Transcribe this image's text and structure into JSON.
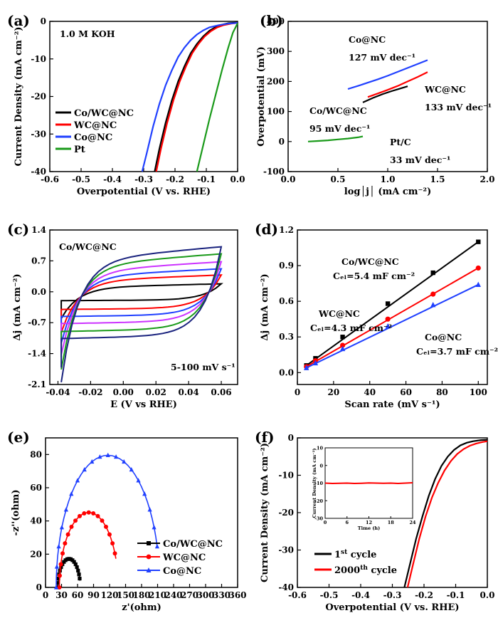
{
  "chart_data": [
    {
      "panel": "(a)",
      "type": "line",
      "xlabel": "Overpotential (V vs. RHE)",
      "ylabel": "Current Density (mA cm⁻²)",
      "xlim": [
        -0.6,
        0.0
      ],
      "ylim": [
        -40,
        0
      ],
      "xticks": [
        "-0.6",
        "-0.5",
        "-0.4",
        "-0.3",
        "-0.2",
        "-0.1",
        "0.0"
      ],
      "yticks": [
        "0",
        "-10",
        "-20",
        "-30",
        "-40"
      ],
      "annotation": "1.0 M KOH",
      "legend_position": "lower-left",
      "series": [
        {
          "name": "Co/WC@NC",
          "color": "#000000",
          "x": [
            -0.265,
            -0.25,
            -0.23,
            -0.21,
            -0.19,
            -0.17,
            -0.15,
            -0.13,
            -0.11,
            -0.09,
            -0.07,
            -0.05,
            -0.03,
            0.0
          ],
          "y": [
            -40,
            -34,
            -27,
            -21,
            -16,
            -12,
            -8.5,
            -6,
            -4,
            -2.5,
            -1.5,
            -0.9,
            -0.5,
            -0.3
          ]
        },
        {
          "name": "WC@NC",
          "color": "#ff0000",
          "x": [
            -0.26,
            -0.245,
            -0.225,
            -0.205,
            -0.185,
            -0.165,
            -0.145,
            -0.125,
            -0.105,
            -0.085,
            -0.065,
            -0.045,
            -0.02,
            0.0
          ],
          "y": [
            -40,
            -34,
            -27,
            -21,
            -16,
            -12,
            -8.5,
            -6,
            -4,
            -2.6,
            -1.6,
            -1.0,
            -0.6,
            -0.4
          ]
        },
        {
          "name": "Co@NC",
          "color": "#2040ff",
          "x": [
            -0.305,
            -0.29,
            -0.27,
            -0.25,
            -0.23,
            -0.21,
            -0.19,
            -0.17,
            -0.15,
            -0.13,
            -0.11,
            -0.09,
            -0.06,
            -0.03,
            0.0
          ],
          "y": [
            -40,
            -35,
            -28,
            -22,
            -17,
            -13,
            -9.5,
            -7,
            -5,
            -3.5,
            -2.4,
            -1.6,
            -1.0,
            -0.6,
            -0.4
          ]
        },
        {
          "name": "Pt",
          "color": "#1a9a1a",
          "x": [
            -0.13,
            -0.11,
            -0.09,
            -0.07,
            -0.05,
            -0.03,
            -0.015,
            0.0
          ],
          "y": [
            -40,
            -33,
            -26,
            -19.5,
            -13,
            -7,
            -3,
            -0.5
          ]
        }
      ]
    },
    {
      "panel": "(b)",
      "type": "line",
      "xlabel": "log│j│ (mA cm⁻²)",
      "ylabel": "Overpotential (mV)",
      "xlim": [
        0.0,
        2.0
      ],
      "ylim": [
        -100,
        400
      ],
      "xticks": [
        "0.0",
        "0.5",
        "1.0",
        "1.5",
        "2.0"
      ],
      "yticks": [
        "400",
        "300",
        "200",
        "100",
        "0",
        "-100"
      ],
      "series": [
        {
          "name": "Co/WC@NC",
          "color": "#000000",
          "label_lines": [
            "Co/WC@NC",
            "95 mV dec⁻¹"
          ],
          "x": [
            0.75,
            0.85,
            0.95,
            1.05,
            1.15,
            1.2
          ],
          "y": [
            130,
            145,
            158,
            169,
            179,
            184
          ]
        },
        {
          "name": "WC@NC",
          "color": "#ff0000",
          "label_lines": [
            "WC@NC",
            "133 mV dec⁻¹"
          ],
          "x": [
            0.8,
            0.9,
            1.0,
            1.1,
            1.2,
            1.3,
            1.4
          ],
          "y": [
            148,
            160,
            172,
            185,
            200,
            215,
            231
          ]
        },
        {
          "name": "Co@NC",
          "color": "#2040ff",
          "label_lines": [
            "Co@NC",
            "127 mV dec⁻¹"
          ],
          "x": [
            0.6,
            0.7,
            0.8,
            0.9,
            1.0,
            1.1,
            1.2,
            1.3,
            1.4
          ],
          "y": [
            175,
            185,
            196,
            207,
            219,
            232,
            245,
            258,
            271
          ]
        },
        {
          "name": "Pt/C",
          "color": "#1a9a1a",
          "label_lines": [
            "Pt/C",
            "33 mV dec⁻¹"
          ],
          "x": [
            0.2,
            0.3,
            0.4,
            0.5,
            0.6,
            0.7,
            0.75
          ],
          "y": [
            0,
            2,
            4,
            7,
            10,
            14,
            17
          ]
        }
      ]
    },
    {
      "panel": "(c)",
      "type": "line",
      "xlabel": "E (V vs RHE)",
      "ylabel": "Δj (mA cm⁻²)",
      "xlim": [
        -0.045,
        0.07
      ],
      "ylim": [
        -2.1,
        1.4
      ],
      "xticks": [
        "-0.04",
        "-0.02",
        "0.00",
        "0.02",
        "0.04",
        "0.06"
      ],
      "yticks": [
        "1.4",
        "0.7",
        "0.0",
        "-0.7",
        "-1.4",
        "-2.1"
      ],
      "annotation_top": "Co/WC@NC",
      "annotation_bottom": "5-100 mV s⁻¹",
      "cv_loops": [
        {
          "rate": 5,
          "color": "#000000",
          "upper": 0.18,
          "lower": -0.2,
          "start": -0.52
        },
        {
          "rate": 10,
          "color": "#ff0000",
          "upper": 0.38,
          "lower": -0.4,
          "start": -0.78
        },
        {
          "rate": 25,
          "color": "#2040ff",
          "upper": 0.52,
          "lower": -0.56,
          "start": -0.98
        },
        {
          "rate": 50,
          "color": "#cc33ff",
          "upper": 0.68,
          "lower": -0.72,
          "start": -1.2
        },
        {
          "rate": 75,
          "color": "#1a9a1a",
          "upper": 0.86,
          "lower": -0.9,
          "start": -1.48
        },
        {
          "rate": 100,
          "color": "#1a237e",
          "upper": 1.02,
          "lower": -1.06,
          "start": -1.72
        }
      ]
    },
    {
      "panel": "(d)",
      "type": "scatter",
      "xlabel": "Scan rate (mV s⁻¹)",
      "ylabel": "Δj (mA cm⁻²)",
      "xlim": [
        0,
        105
      ],
      "ylim": [
        -0.1,
        1.2
      ],
      "xticks": [
        "0",
        "20",
        "40",
        "60",
        "80",
        "100"
      ],
      "yticks": [
        "1.2",
        "0.9",
        "0.6",
        "0.3",
        "0.0"
      ],
      "series": [
        {
          "name": "Co/WC@NC",
          "color": "#000000",
          "marker": "square",
          "label_lines": [
            "Co/WC@NC",
            "Cₑₗ=5.4 mF cm⁻²"
          ],
          "x": [
            5,
            10,
            25,
            50,
            75,
            100
          ],
          "y": [
            0.06,
            0.12,
            0.3,
            0.58,
            0.84,
            1.1
          ]
        },
        {
          "name": "WC@NC",
          "color": "#ff0000",
          "marker": "circle",
          "label_lines": [
            "WC@NC",
            "Cₑₗ=4.3 mF cm⁻²"
          ],
          "x": [
            5,
            10,
            25,
            50,
            75,
            100
          ],
          "y": [
            0.05,
            0.1,
            0.23,
            0.45,
            0.66,
            0.88
          ]
        },
        {
          "name": "Co@NC",
          "color": "#2040ff",
          "marker": "triangle",
          "label_lines": [
            "Co@NC",
            "Cₑₗ=3.7 mF cm⁻²"
          ],
          "x": [
            5,
            10,
            25,
            50,
            75,
            100
          ],
          "y": [
            0.04,
            0.08,
            0.2,
            0.39,
            0.57,
            0.74
          ]
        }
      ]
    },
    {
      "panel": "(e)",
      "type": "scatter",
      "xlabel": "z'(ohm)",
      "ylabel": "-z''(ohm)",
      "xlim": [
        0,
        360
      ],
      "ylim": [
        0,
        90
      ],
      "xticks": [
        "0",
        "30",
        "60",
        "90",
        "120",
        "150",
        "180",
        "210",
        "240",
        "270",
        "300",
        "330",
        "360"
      ],
      "yticks": [
        "80",
        "60",
        "40",
        "20",
        "0"
      ],
      "legend_position": "right",
      "series": [
        {
          "name": "Co/WC@NC",
          "color": "#000000",
          "marker": "square",
          "center": 44,
          "radius": 21,
          "end": 64
        },
        {
          "name": "WC@NC",
          "color": "#ff0000",
          "marker": "circle",
          "center": 81,
          "radius": 55,
          "end": 132
        },
        {
          "name": "Co@NC",
          "color": "#2040ff",
          "marker": "triangle",
          "center": 117,
          "radius": 97,
          "end": 210
        }
      ]
    },
    {
      "panel": "(f)",
      "type": "line",
      "xlabel": "Overpotential (V vs. RHE)",
      "ylabel": "Current Density (mA cm⁻²)",
      "xlim": [
        -0.6,
        0.0
      ],
      "ylim": [
        -40,
        0
      ],
      "xticks": [
        "-0.6",
        "-0.5",
        "-0.4",
        "-0.3",
        "-0.2",
        "-0.1",
        "0.0"
      ],
      "yticks": [
        "0",
        "-10",
        "-20",
        "-30",
        "-40"
      ],
      "legend_position": "lower-left",
      "series": [
        {
          "name": "1st cycle",
          "legend_main": "1",
          "legend_sup": "st",
          "legend_rest": " cycle",
          "color": "#000000",
          "x": [
            -0.262,
            -0.245,
            -0.225,
            -0.205,
            -0.185,
            -0.165,
            -0.145,
            -0.125,
            -0.105,
            -0.085,
            -0.065,
            -0.045,
            -0.02,
            0.0
          ],
          "y": [
            -40,
            -34,
            -27,
            -21,
            -15.5,
            -11,
            -7.5,
            -5,
            -3.2,
            -2,
            -1.3,
            -0.9,
            -0.6,
            -0.5
          ]
        },
        {
          "name": "2000th cycle",
          "legend_main": "2000",
          "legend_sup": "th",
          "legend_rest": " cycle",
          "color": "#ff0000",
          "x": [
            -0.252,
            -0.235,
            -0.215,
            -0.195,
            -0.175,
            -0.155,
            -0.135,
            -0.115,
            -0.095,
            -0.075,
            -0.055,
            -0.035,
            -0.015,
            0.0
          ],
          "y": [
            -40,
            -34,
            -27,
            -21,
            -16,
            -12,
            -8.7,
            -6.2,
            -4.3,
            -3,
            -2.1,
            -1.5,
            -1.1,
            -0.9
          ]
        }
      ],
      "inset": {
        "xlabel": "Time (h)",
        "ylabel": "Current Density (mA cm⁻²)",
        "xlim": [
          0,
          24
        ],
        "ylim": [
          -30,
          10
        ],
        "xticks": [
          "0",
          "6",
          "12",
          "18",
          "24"
        ],
        "yticks": [
          "10",
          "0",
          "-10",
          "-20",
          "-30"
        ],
        "series": [
          {
            "name": "stability",
            "color": "#ff0000",
            "x": [
              0,
              2,
              4,
              6,
              8,
              10,
              12,
              14,
              16,
              18,
              20,
              22,
              24
            ],
            "y": [
              -10,
              -10.2,
              -10.1,
              -10,
              -10.2,
              -10.1,
              -9.9,
              -10,
              -10.1,
              -10,
              -10.2,
              -10,
              -9.8
            ]
          }
        ]
      }
    }
  ]
}
